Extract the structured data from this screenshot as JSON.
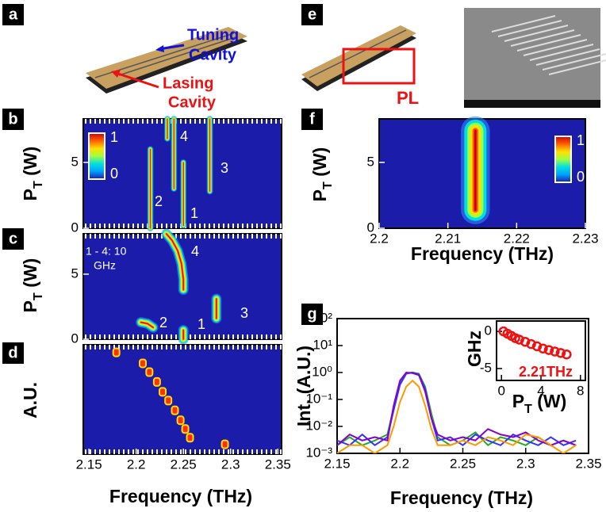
{
  "panel_labels": [
    "a",
    "b",
    "c",
    "d",
    "e",
    "f",
    "g"
  ],
  "schematic_a": {
    "tuning": [
      "Tuning",
      "Cavity"
    ],
    "lasing": [
      "Lasing",
      "Cavity"
    ]
  },
  "schematic_e": {
    "pl": "PL"
  },
  "chart_data": [
    {
      "type": "heatmap",
      "ylabel": {
        "text": "P",
        "sub": "T",
        "unit": " (W)"
      },
      "xlim": [
        2.144,
        2.354
      ],
      "ylim": [
        0,
        8.3
      ],
      "yticks": [
        0,
        5
      ],
      "colorbar": [
        1,
        0
      ],
      "features": [
        {
          "label": "1",
          "x": [
            2.25,
            2.25
          ],
          "y": [
            0.2,
            5
          ]
        },
        {
          "label": "2",
          "x": [
            2.215,
            2.215
          ],
          "y": [
            0,
            6
          ]
        },
        {
          "label": "3",
          "x": [
            2.278,
            2.278
          ],
          "y": [
            2.8,
            8.3
          ]
        },
        {
          "label": "4",
          "x": [
            2.24,
            2.24
          ],
          "y": [
            3,
            8.3
          ]
        },
        {
          "x": [
            2.233,
            2.233
          ],
          "y": [
            6.8,
            8.3
          ]
        }
      ]
    },
    {
      "type": "heatmap",
      "ylabel": {
        "text": "P",
        "sub": "T",
        "unit": " (W)"
      },
      "xlim": [
        2.144,
        2.354
      ],
      "ylim": [
        0,
        8.1
      ],
      "yticks": [
        0,
        5
      ],
      "annotation": [
        "1 - 4: 10",
        "GHz"
      ],
      "features": [
        {
          "label": "1",
          "x": [
            2.25,
            2.25
          ],
          "y": [
            0,
            0.7
          ]
        },
        {
          "label": "2",
          "x": [
            2.205,
            2.212,
            2.218
          ],
          "y": [
            1.3,
            1.2,
            0.9
          ]
        },
        {
          "label": "3",
          "x": [
            2.285,
            2.285
          ],
          "y": [
            1.6,
            3.1
          ]
        },
        {
          "label": "4",
          "x": [
            2.232,
            2.238,
            2.244,
            2.248,
            2.25,
            2.25
          ],
          "y": [
            8.1,
            7.6,
            6.8,
            5.8,
            4.6,
            3.8
          ]
        }
      ]
    },
    {
      "type": "heatmap",
      "ylabel": "A.U.",
      "xlabel": "Frequency (THz)",
      "xlim": [
        2.144,
        2.354
      ],
      "ylim": [
        0,
        10
      ],
      "xticks": [
        2.15,
        2.2,
        2.25,
        2.3,
        2.35
      ],
      "points": {
        "x": [
          2.179,
          2.207,
          2.214,
          2.222,
          2.228,
          2.234,
          2.241,
          2.247,
          2.252,
          2.257,
          2.294
        ],
        "y": [
          9.3,
          8.3,
          7.5,
          6.6,
          5.7,
          4.9,
          4.0,
          3.1,
          2.3,
          1.5,
          0.9
        ]
      }
    },
    {
      "type": "heatmap",
      "ylabel": {
        "text": "P",
        "sub": "T",
        "unit": " (W)"
      },
      "xlabel": "Frequency (THz)",
      "xlim": [
        2.2,
        2.23
      ],
      "ylim": [
        0,
        8.3
      ],
      "xticks": [
        2.2,
        2.21,
        2.22,
        2.23
      ],
      "yticks": [
        0,
        5
      ],
      "colorbar": [
        1,
        0
      ],
      "features": [
        {
          "x": [
            2.214,
            2.214
          ],
          "y": [
            1.4,
            7.4
          ]
        }
      ]
    },
    {
      "type": "line",
      "log_y": true,
      "xlabel": "Frequency (THz)",
      "ylabel": "Int. (A.U.)",
      "xlim": [
        2.15,
        2.35
      ],
      "ylim": [
        0.001,
        100
      ],
      "xticks": [
        2.15,
        2.2,
        2.25,
        2.3,
        2.35
      ],
      "yticks": [
        {
          "value": 100,
          "label": "10²"
        },
        {
          "value": 10,
          "label": "10¹"
        },
        {
          "value": 1,
          "label": "10⁰"
        },
        {
          "value": 0.1,
          "label": "10⁻¹"
        },
        {
          "value": 0.01,
          "label": "10⁻²"
        },
        {
          "value": 0.001,
          "label": "10⁻³"
        }
      ],
      "x": [
        2.15,
        2.16,
        2.17,
        2.18,
        2.19,
        2.195,
        2.2,
        2.205,
        2.21,
        2.215,
        2.22,
        2.225,
        2.23,
        2.24,
        2.25,
        2.26,
        2.27,
        2.28,
        2.29,
        2.3,
        2.31,
        2.32,
        2.33,
        2.34
      ],
      "series": [
        {
          "color": "#22aa22",
          "values": [
            0.002,
            0.004,
            0.002,
            0.003,
            0.005,
            0.05,
            0.4,
            0.95,
            1,
            0.9,
            0.3,
            0.03,
            0.004,
            0.002,
            0.003,
            0.006,
            0.002,
            0.004,
            0.003,
            0.002,
            0.004,
            0.002,
            0.003,
            0.002
          ]
        },
        {
          "color": "#3333ff",
          "values": [
            0.003,
            0.002,
            0.005,
            0.002,
            0.004,
            0.04,
            0.35,
            0.9,
            1,
            0.85,
            0.25,
            0.02,
            0.003,
            0.004,
            0.002,
            0.005,
            0.003,
            0.002,
            0.005,
            0.003,
            0.002,
            0.004,
            0.002,
            0.003
          ]
        },
        {
          "color": "#8800cc",
          "values": [
            0.002,
            0.005,
            0.003,
            0.004,
            0.003,
            0.06,
            0.5,
            1,
            0.95,
            0.8,
            0.2,
            0.02,
            0.005,
            0.003,
            0.004,
            0.003,
            0.008,
            0.005,
            0.004,
            0.006,
            0.003,
            0.002,
            0.003,
            0.002
          ]
        },
        {
          "color": "#ff9900",
          "values": [
            0.001,
            0.002,
            0.002,
            0.001,
            0.002,
            0.01,
            0.08,
            0.3,
            0.5,
            0.3,
            0.06,
            0.008,
            0.002,
            0.002,
            0.003,
            0.002,
            0.004,
            0.003,
            0.002,
            0.005,
            0.004,
            0.002,
            0.001,
            0.002
          ]
        }
      ]
    },
    {
      "type": "scatter",
      "xlim": [
        -0.5,
        8.5
      ],
      "ylim": [
        -6.6,
        1.4
      ],
      "xticks": [
        0,
        4,
        8
      ],
      "yticks": [
        0,
        -5
      ],
      "ylabel": "GHz",
      "xlabel": {
        "text": "P",
        "sub": "T",
        "unit": " (W)"
      },
      "annotation": "2.21THz",
      "color": "#ee1111",
      "x": [
        0.2,
        0.6,
        1,
        1.4,
        1.8,
        2.4,
        3,
        3.6,
        4.2,
        4.8,
        5.4,
        6,
        6.6
      ],
      "y": [
        0,
        -0.3,
        -0.6,
        -0.9,
        -1.1,
        -1.4,
        -1.7,
        -2,
        -2.3,
        -2.5,
        -2.7,
        -2.9,
        -3.1
      ]
    }
  ]
}
